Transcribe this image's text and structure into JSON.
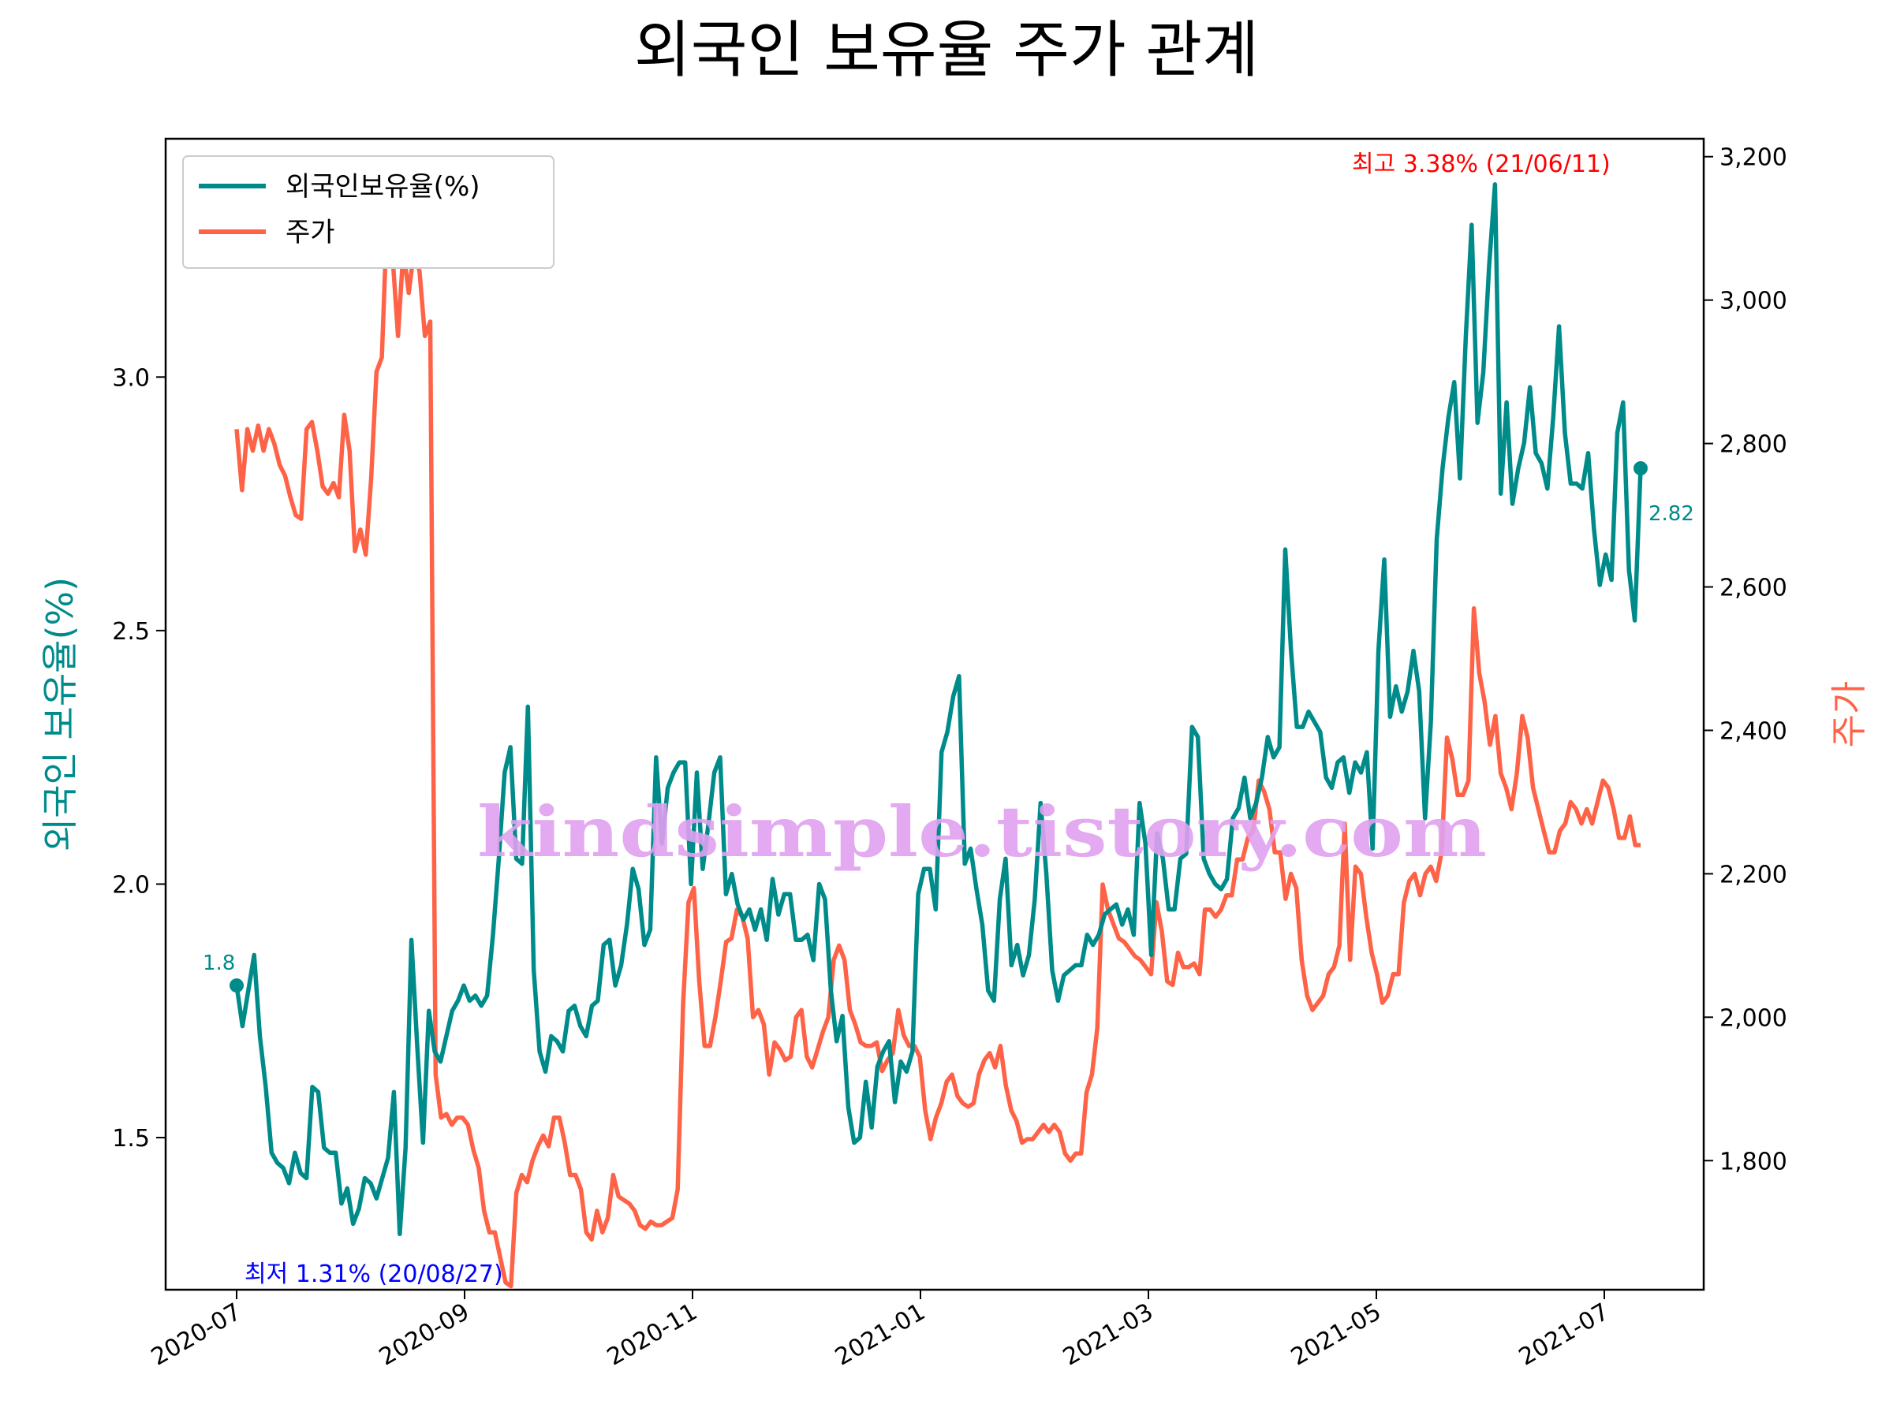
{
  "chart_data": {
    "type": "line",
    "title": "외국인 보유율 주가 관계",
    "xlabel": "",
    "ylabel_left": "외국인 보유율(%)",
    "ylabel_right": "주가",
    "ylim_left": [
      1.2,
      3.47
    ],
    "ylim_right": [
      1620,
      3225
    ],
    "x_tick_labels": [
      "2020-07",
      "2020-09",
      "2020-11",
      "2021-01",
      "2021-03",
      "2021-05",
      "2021-07"
    ],
    "y_left_tick_labels": [
      "1.5",
      "2.0",
      "2.5",
      "3.0"
    ],
    "y_left_ticks": [
      1.5,
      2.0,
      2.5,
      3.0
    ],
    "y_right_tick_labels": [
      "1,800",
      "2,000",
      "2,200",
      "2,400",
      "2,600",
      "2,800",
      "3,000",
      "3,200"
    ],
    "y_right_ticks": [
      1800,
      2000,
      2200,
      2400,
      2600,
      2800,
      3000,
      3200
    ],
    "legend": {
      "position": "top-left",
      "items": [
        {
          "label": "외국인보유율(%)",
          "color": "#008b8b"
        },
        {
          "label": "주가",
          "color": "#ff6347"
        }
      ]
    },
    "colors": {
      "foreign": "#008b8b",
      "price": "#ff6347",
      "min": "#0000ff",
      "max": "#ff0000",
      "watermark": "#e0a0f0"
    },
    "series": [
      {
        "name": "외국인보유율(%)",
        "axis": "left",
        "values": [
          1.8,
          1.72,
          1.79,
          1.86,
          1.7,
          1.6,
          1.47,
          1.45,
          1.44,
          1.41,
          1.47,
          1.43,
          1.42,
          1.6,
          1.59,
          1.48,
          1.47,
          1.47,
          1.37,
          1.4,
          1.33,
          1.36,
          1.42,
          1.41,
          1.38,
          1.42,
          1.46,
          1.59,
          1.31,
          1.48,
          1.89,
          1.68,
          1.49,
          1.75,
          1.67,
          1.65,
          1.7,
          1.75,
          1.77,
          1.8,
          1.77,
          1.78,
          1.76,
          1.78,
          1.9,
          2.05,
          2.22,
          2.27,
          2.05,
          2.04,
          2.35,
          1.83,
          1.67,
          1.63,
          1.7,
          1.69,
          1.67,
          1.75,
          1.76,
          1.72,
          1.7,
          1.76,
          1.77,
          1.88,
          1.89,
          1.8,
          1.84,
          1.92,
          2.03,
          1.99,
          1.88,
          1.91,
          2.25,
          2.08,
          2.19,
          2.22,
          2.24,
          2.24,
          2.0,
          2.22,
          2.03,
          2.12,
          2.22,
          2.25,
          1.98,
          2.02,
          1.96,
          1.93,
          1.95,
          1.91,
          1.95,
          1.89,
          2.01,
          1.94,
          1.98,
          1.98,
          1.89,
          1.89,
          1.9,
          1.85,
          2.0,
          1.97,
          1.79,
          1.69,
          1.74,
          1.56,
          1.49,
          1.5,
          1.61,
          1.52,
          1.64,
          1.67,
          1.69,
          1.57,
          1.65,
          1.63,
          1.67,
          1.98,
          2.03,
          2.03,
          1.95,
          2.26,
          2.3,
          2.37,
          2.41,
          2.04,
          2.07,
          1.99,
          1.92,
          1.79,
          1.77,
          1.97,
          2.05,
          1.84,
          1.88,
          1.82,
          1.86,
          1.97,
          2.16,
          2.02,
          1.83,
          1.77,
          1.82,
          1.83,
          1.84,
          1.84,
          1.9,
          1.88,
          1.9,
          1.94,
          1.95,
          1.96,
          1.92,
          1.95,
          1.9,
          2.16,
          2.08,
          1.86,
          2.1,
          2.05,
          1.95,
          1.95,
          2.05,
          2.06,
          2.31,
          2.29,
          2.05,
          2.02,
          2.0,
          1.99,
          2.01,
          2.13,
          2.15,
          2.21,
          2.13,
          2.16,
          2.21,
          2.29,
          2.25,
          2.27,
          2.66,
          2.46,
          2.31,
          2.31,
          2.34,
          2.32,
          2.3,
          2.21,
          2.19,
          2.24,
          2.25,
          2.18,
          2.24,
          2.22,
          2.26,
          2.07,
          2.46,
          2.64,
          2.33,
          2.39,
          2.34,
          2.38,
          2.46,
          2.38,
          2.13,
          2.32,
          2.68,
          2.82,
          2.92,
          2.99,
          2.8,
          3.08,
          3.3,
          2.91,
          3.01,
          3.22,
          3.38,
          2.77,
          2.95,
          2.75,
          2.82,
          2.87,
          2.98,
          2.85,
          2.83,
          2.78,
          2.92,
          3.1,
          2.89,
          2.79,
          2.79,
          2.78,
          2.85,
          2.7,
          2.59,
          2.65,
          2.6,
          2.89,
          2.95,
          2.62,
          2.52,
          2.82
        ]
      },
      {
        "name": "주가",
        "axis": "right",
        "values": [
          2820,
          2735,
          2820,
          2790,
          2825,
          2790,
          2820,
          2800,
          2770,
          2755,
          2725,
          2700,
          2695,
          2820,
          2830,
          2790,
          2740,
          2730,
          2745,
          2725,
          2840,
          2790,
          2650,
          2680,
          2645,
          2750,
          2900,
          2920,
          3125,
          3060,
          2950,
          3070,
          3010,
          3070,
          3040,
          2950,
          2970,
          1920,
          1860,
          1865,
          1850,
          1860,
          1860,
          1850,
          1815,
          1790,
          1730,
          1700,
          1700,
          1665,
          1630,
          1625,
          1755,
          1780,
          1770,
          1800,
          1820,
          1835,
          1820,
          1860,
          1860,
          1825,
          1780,
          1780,
          1760,
          1700,
          1690,
          1730,
          1700,
          1720,
          1780,
          1750,
          1745,
          1740,
          1730,
          1710,
          1705,
          1715,
          1710,
          1710,
          1715,
          1720,
          1760,
          2020,
          2160,
          2180,
          2050,
          1960,
          1960,
          2000,
          2050,
          2105,
          2110,
          2150,
          2140,
          2110,
          2000,
          2010,
          1990,
          1920,
          1965,
          1955,
          1940,
          1945,
          2000,
          2010,
          1945,
          1930,
          1955,
          1980,
          2000,
          2080,
          2100,
          2080,
          2010,
          1990,
          1965,
          1960,
          1960,
          1965,
          1925,
          1940,
          1950,
          2010,
          1975,
          1960,
          1960,
          1945,
          1870,
          1830,
          1860,
          1880,
          1910,
          1920,
          1890,
          1880,
          1875,
          1880,
          1920,
          1940,
          1950,
          1930,
          1960,
          1905,
          1870,
          1855,
          1825,
          1830,
          1830,
          1840,
          1850,
          1840,
          1850,
          1840,
          1810,
          1800,
          1810,
          1810,
          1895,
          1920,
          1985,
          2185,
          2150,
          2130,
          2110,
          2105,
          2095,
          2085,
          2080,
          2070,
          2060,
          2160,
          2120,
          2050,
          2045,
          2090,
          2070,
          2070,
          2075,
          2060,
          2150,
          2150,
          2140,
          2150,
          2170,
          2170,
          2220,
          2220,
          2250,
          2260,
          2330,
          2315,
          2290,
          2230,
          2230,
          2165,
          2200,
          2180,
          2080,
          2030,
          2010,
          2020,
          2030,
          2060,
          2070,
          2100,
          2270,
          2080,
          2210,
          2200,
          2140,
          2090,
          2060,
          2020,
          2030,
          2060,
          2060,
          2160,
          2190,
          2200,
          2170,
          2200,
          2210,
          2190,
          2230,
          2390,
          2360,
          2310,
          2310,
          2330,
          2570,
          2480,
          2440,
          2380,
          2420,
          2340,
          2320,
          2290,
          2340,
          2420,
          2390,
          2320,
          2290,
          2260,
          2230,
          2230,
          2260,
          2270,
          2300,
          2290,
          2270,
          2290,
          2270,
          2300,
          2330,
          2320,
          2290,
          2250,
          2250,
          2280,
          2240,
          2240
        ]
      }
    ],
    "annotations": {
      "start_label": "1.8",
      "end_label": "2.82",
      "min_label": "최저 1.31% (20/08/27)",
      "max_label": "최고 3.38% (21/06/11)",
      "start_value": 1.8,
      "end_value": 2.82
    },
    "watermark": "kindsimple.tistory.com"
  }
}
